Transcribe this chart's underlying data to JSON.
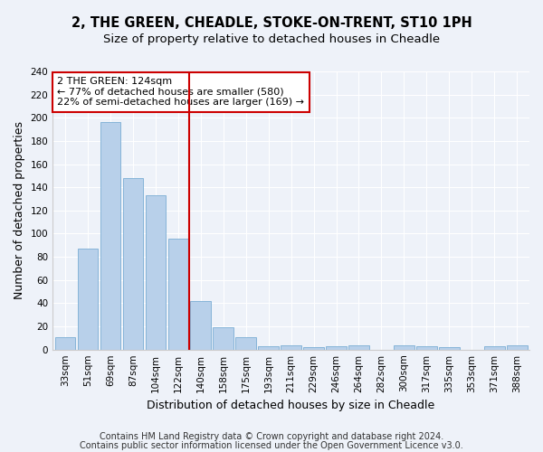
{
  "title1": "2, THE GREEN, CHEADLE, STOKE-ON-TRENT, ST10 1PH",
  "title2": "Size of property relative to detached houses in Cheadle",
  "xlabel": "Distribution of detached houses by size in Cheadle",
  "ylabel": "Number of detached properties",
  "categories": [
    "33sqm",
    "51sqm",
    "69sqm",
    "87sqm",
    "104sqm",
    "122sqm",
    "140sqm",
    "158sqm",
    "175sqm",
    "193sqm",
    "211sqm",
    "229sqm",
    "246sqm",
    "264sqm",
    "282sqm",
    "300sqm",
    "317sqm",
    "335sqm",
    "353sqm",
    "371sqm",
    "388sqm"
  ],
  "values": [
    11,
    87,
    196,
    148,
    133,
    96,
    42,
    19,
    11,
    3,
    4,
    2,
    3,
    4,
    0,
    4,
    3,
    2,
    0,
    3,
    4
  ],
  "bar_color": "#b8d0ea",
  "bar_edge_color": "#7aadd4",
  "vline_x": 5.5,
  "vline_color": "#cc0000",
  "annotation_line1": "2 THE GREEN: 124sqm",
  "annotation_line2": "← 77% of detached houses are smaller (580)",
  "annotation_line3": "22% of semi-detached houses are larger (169) →",
  "annotation_box_color": "#ffffff",
  "annotation_box_edge": "#cc0000",
  "ylim": [
    0,
    240
  ],
  "yticks": [
    0,
    20,
    40,
    60,
    80,
    100,
    120,
    140,
    160,
    180,
    200,
    220,
    240
  ],
  "footer1": "Contains HM Land Registry data © Crown copyright and database right 2024.",
  "footer2": "Contains public sector information licensed under the Open Government Licence v3.0.",
  "bg_color": "#eef2f9",
  "grid_color": "#ffffff",
  "title_fontsize": 10.5,
  "subtitle_fontsize": 9.5,
  "label_fontsize": 9,
  "tick_fontsize": 7.5,
  "footer_fontsize": 7
}
